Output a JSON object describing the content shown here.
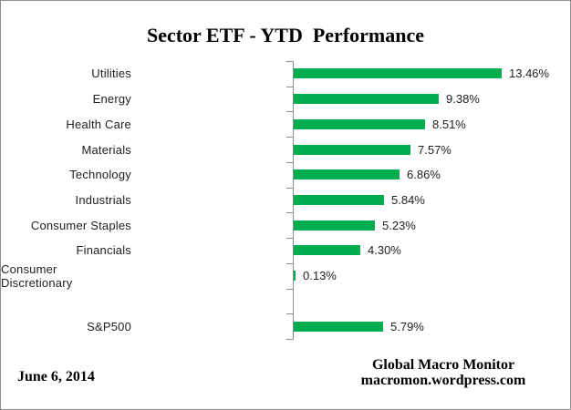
{
  "title": "Sector ETF - YTD  Performance",
  "footer": {
    "date": "June 6, 2014",
    "source_line1": "Global Macro Monitor",
    "source_line2": "macromon.wordpress.com"
  },
  "colors": {
    "bar": "#00AC50",
    "axis": "#8c8c8c",
    "text": "#212121",
    "frame_border": "#8c8c8c"
  },
  "chart_data": {
    "type": "bar",
    "orientation": "horizontal",
    "title": "Sector ETF - YTD  Performance",
    "categories": [
      "Utilities",
      "Energy",
      "Health Care",
      "Materials",
      "Technology",
      "Industrials",
      "Consumer Staples",
      "Financials",
      "Consumer Discretionary",
      "",
      "S&P500"
    ],
    "values": [
      13.46,
      9.38,
      8.51,
      7.57,
      6.86,
      5.84,
      5.23,
      4.3,
      0.13,
      null,
      5.79
    ],
    "value_labels": [
      "13.46%",
      "9.38%",
      "8.51%",
      "7.57%",
      "6.86%",
      "5.84%",
      "5.23%",
      "4.30%",
      "0.13%",
      "",
      "5.79%"
    ],
    "xlim": [
      0,
      17.5
    ],
    "xlabel": "",
    "ylabel": "",
    "grid": false,
    "legend": false,
    "value_axis_visible": false,
    "bar_color": "#00AC50"
  }
}
